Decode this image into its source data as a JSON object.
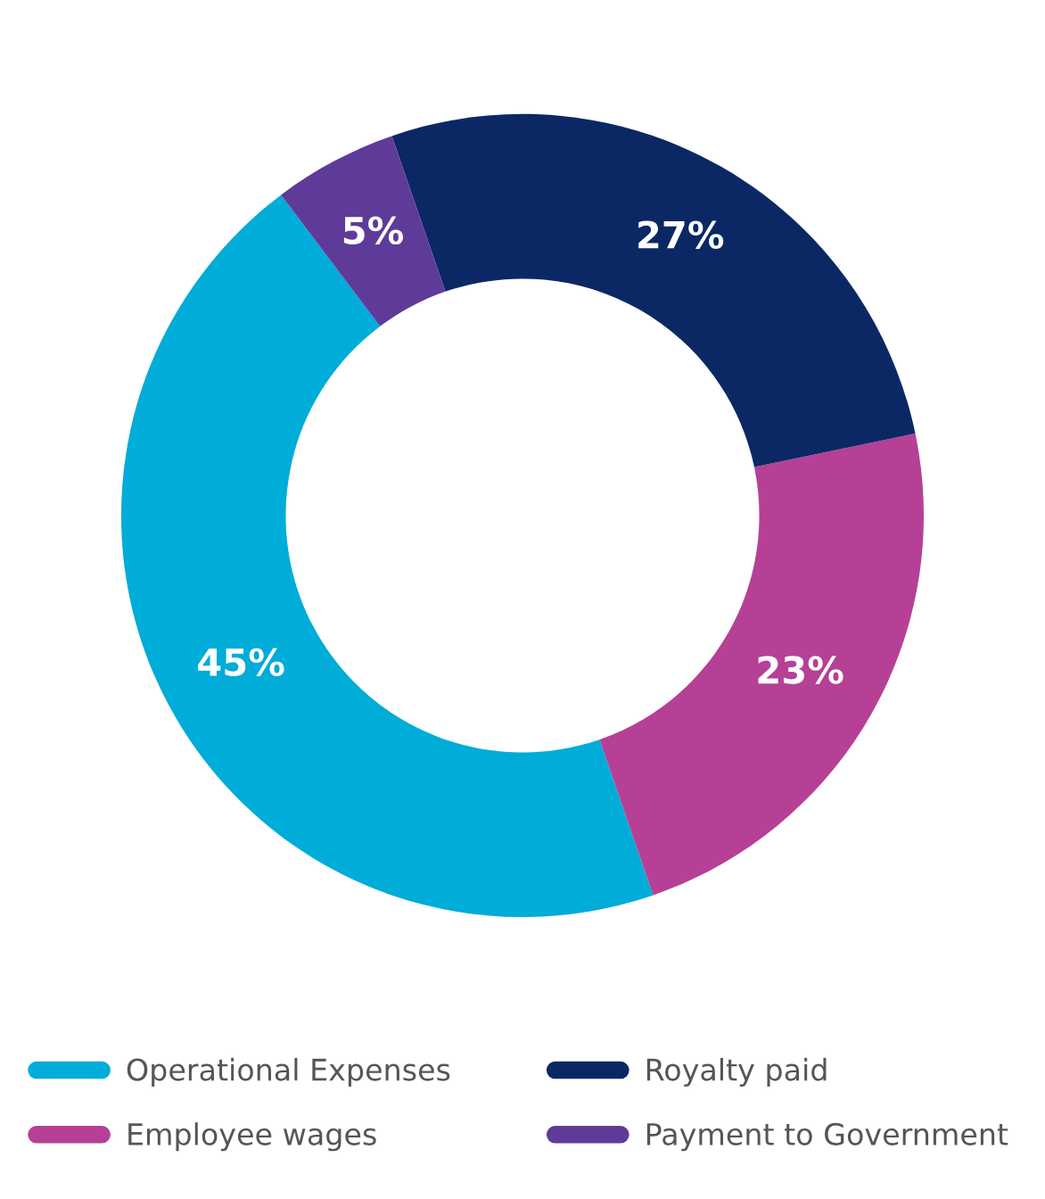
{
  "chart_data": {
    "type": "donut",
    "categories": [
      "Operational Expenses",
      "Employee wages",
      "Royalty paid",
      "Payment to Government"
    ],
    "values": [
      45,
      23,
      27,
      5
    ],
    "colors": [
      "#00acd8",
      "#b54096",
      "#0b2865",
      "#5f3b99"
    ],
    "value_labels": [
      "45%",
      "23%",
      "27%",
      "5%"
    ],
    "legend": "bottom"
  }
}
